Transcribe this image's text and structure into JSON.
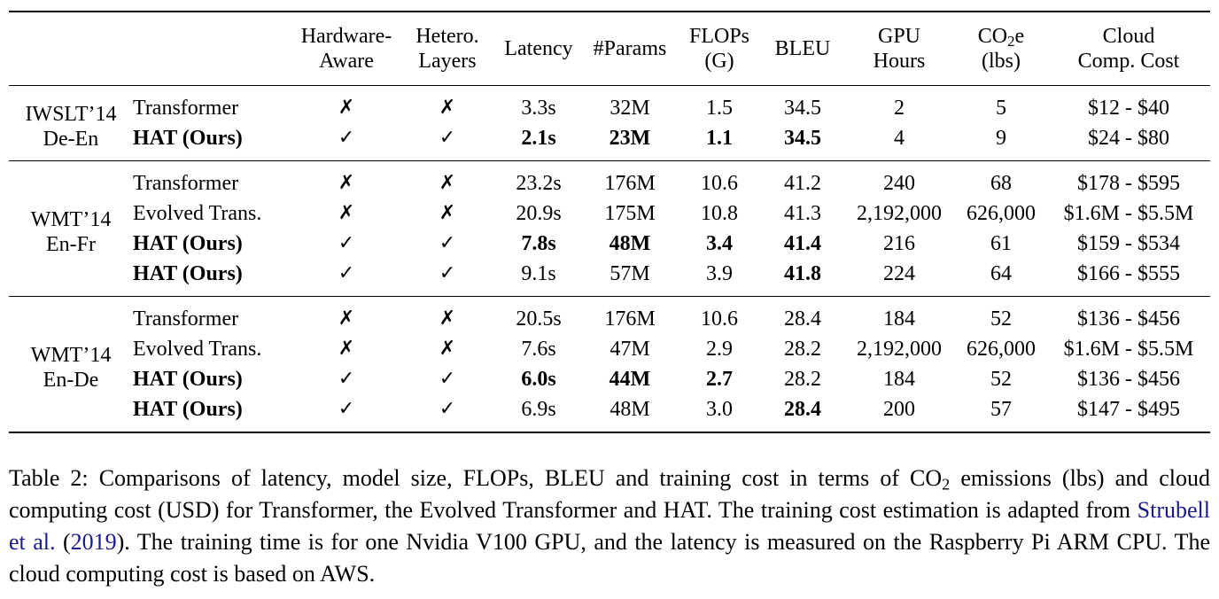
{
  "table": {
    "headers": {
      "hw_aware_l1": "Hardware-",
      "hw_aware_l2": "Aware",
      "hetero_l1": "Hetero.",
      "hetero_l2": "Layers",
      "latency": "Latency",
      "params": "#Params",
      "flops_l1": "FLOPs",
      "flops_l2": "(G)",
      "bleu": "BLEU",
      "gpu_l1": "GPU",
      "gpu_l2": "Hours",
      "co2_pre": "CO",
      "co2_sub": "2",
      "co2_post": "e",
      "co2_l2": "(lbs)",
      "cloud_l1": "Cloud",
      "cloud_l2": "Comp. Cost"
    },
    "marks": {
      "check": "✓",
      "cross": "✗"
    },
    "groups": [
      {
        "dataset_l1": "IWSLT’14",
        "dataset_l2": "De-En",
        "rows": [
          {
            "model": "Transformer",
            "hw": "✗",
            "het": "✗",
            "latency": "3.3s",
            "params": "32M",
            "flops": "1.5",
            "bleu": "34.5",
            "gpu": "2",
            "co2": "5",
            "cost": "$12 - $40"
          },
          {
            "model": "HAT (Ours)",
            "hw": "✓",
            "het": "✓",
            "latency": "2.1s",
            "params": "23M",
            "flops": "1.1",
            "bleu": "34.5",
            "gpu": "4",
            "co2": "9",
            "cost": "$24 - $80"
          }
        ]
      },
      {
        "dataset_l1": "WMT’14",
        "dataset_l2": "En-Fr",
        "rows": [
          {
            "model": "Transformer",
            "hw": "✗",
            "het": "✗",
            "latency": "23.2s",
            "params": "176M",
            "flops": "10.6",
            "bleu": "41.2",
            "gpu": "240",
            "co2": "68",
            "cost": "$178 - $595"
          },
          {
            "model": "Evolved Trans.",
            "hw": "✗",
            "het": "✗",
            "latency": "20.9s",
            "params": "175M",
            "flops": "10.8",
            "bleu": "41.3",
            "gpu": "2,192,000",
            "co2": "626,000",
            "cost": "$1.6M - $5.5M"
          },
          {
            "model": "HAT (Ours)",
            "hw": "✓",
            "het": "✓",
            "latency": "7.8s",
            "params": "48M",
            "flops": "3.4",
            "bleu": "41.4",
            "gpu": "216",
            "co2": "61",
            "cost": "$159 - $534"
          },
          {
            "model": "HAT (Ours)",
            "hw": "✓",
            "het": "✓",
            "latency": "9.1s",
            "params": "57M",
            "flops": "3.9",
            "bleu": "41.8",
            "gpu": "224",
            "co2": "64",
            "cost": "$166 - $555"
          }
        ]
      },
      {
        "dataset_l1": "WMT’14",
        "dataset_l2": "En-De",
        "rows": [
          {
            "model": "Transformer",
            "hw": "✗",
            "het": "✗",
            "latency": "20.5s",
            "params": "176M",
            "flops": "10.6",
            "bleu": "28.4",
            "gpu": "184",
            "co2": "52",
            "cost": "$136 - $456"
          },
          {
            "model": "Evolved Trans.",
            "hw": "✗",
            "het": "✗",
            "latency": "7.6s",
            "params": "47M",
            "flops": "2.9",
            "bleu": "28.2",
            "gpu": "2,192,000",
            "co2": "626,000",
            "cost": "$1.6M - $5.5M"
          },
          {
            "model": "HAT (Ours)",
            "hw": "✓",
            "het": "✓",
            "latency": "6.0s",
            "params": "44M",
            "flops": "2.7",
            "bleu": "28.2",
            "gpu": "184",
            "co2": "52",
            "cost": "$136 - $456"
          },
          {
            "model": "HAT (Ours)",
            "hw": "✓",
            "het": "✓",
            "latency": "6.9s",
            "params": "48M",
            "flops": "3.0",
            "bleu": "28.4",
            "gpu": "200",
            "co2": "57",
            "cost": "$147 - $495"
          }
        ]
      }
    ]
  },
  "caption": {
    "part1": "Table 2: Comparisons of latency, model size, FLOPs, BLEU and training cost in terms of CO",
    "co2_sub": "2",
    "part2": " emissions (lbs) and cloud computing cost (USD) for Transformer, the Evolved Transformer and HAT. The training cost estimation is adapted from ",
    "cite_authors": "Strubell et al.",
    "cite_open": " (",
    "cite_year": "2019",
    "part3": "). The training time is for one Nvidia V100 GPU, and the latency is measured on the Raspberry Pi ARM CPU. The cloud computing cost is based on AWS."
  }
}
